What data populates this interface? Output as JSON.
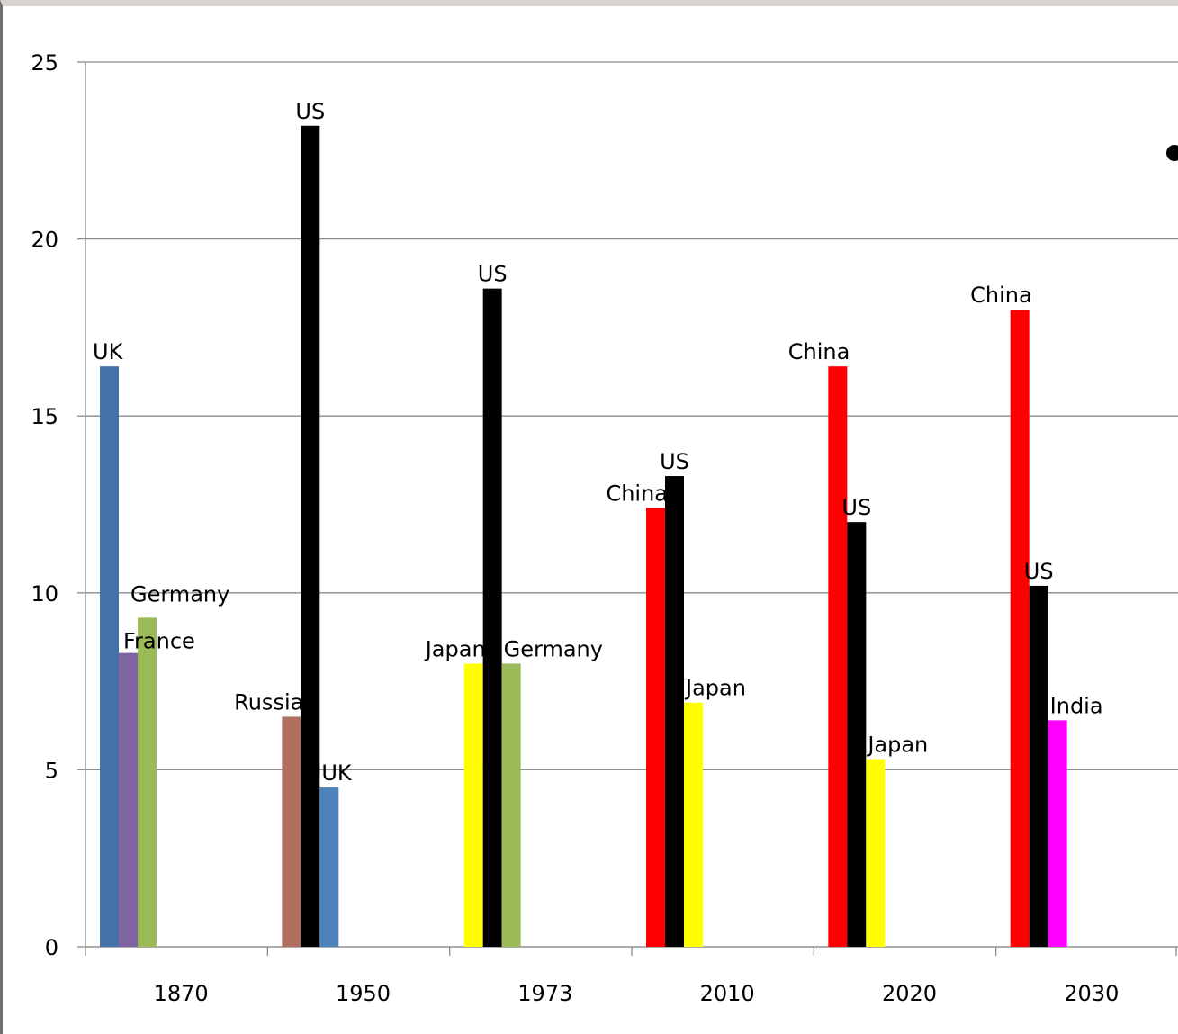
{
  "chart_data": {
    "type": "bar",
    "title": "",
    "xlabel": "",
    "ylabel": "",
    "ylim": [
      0,
      25
    ],
    "yticks": [
      0,
      5,
      10,
      15,
      20,
      25
    ],
    "grid": true,
    "categories": [
      {
        "label": "1870",
        "bars": [
          {
            "name": "UK",
            "value": 16.4,
            "color": "#4472a8"
          },
          {
            "name": "France",
            "value": 8.3,
            "color": "#8064a2"
          },
          {
            "name": "Germany",
            "value": 9.3,
            "color": "#9bbb59"
          }
        ]
      },
      {
        "label": "1950",
        "bars": [
          {
            "name": "Russia",
            "value": 6.5,
            "color": "#b07060"
          },
          {
            "name": "US",
            "value": 23.2,
            "color": "#000000"
          },
          {
            "name": "UK",
            "value": 4.5,
            "color": "#4f81bd"
          }
        ]
      },
      {
        "label": "1973",
        "bars": [
          {
            "name": "Japan",
            "value": 8.0,
            "color": "#ffff00"
          },
          {
            "name": "US",
            "value": 18.6,
            "color": "#000000"
          },
          {
            "name": "Germany",
            "value": 8.0,
            "color": "#9bbb59"
          }
        ]
      },
      {
        "label": "2010",
        "bars": [
          {
            "name": "China",
            "value": 12.4,
            "color": "#ff0000"
          },
          {
            "name": "US",
            "value": 13.3,
            "color": "#000000"
          },
          {
            "name": "Japan",
            "value": 6.9,
            "color": "#ffff00"
          }
        ]
      },
      {
        "label": "2020",
        "bars": [
          {
            "name": "China",
            "value": 16.4,
            "color": "#ff0000"
          },
          {
            "name": "US",
            "value": 12.0,
            "color": "#000000"
          },
          {
            "name": "Japan",
            "value": 5.3,
            "color": "#ffff00"
          }
        ]
      },
      {
        "label": "2030",
        "bars": [
          {
            "name": "China",
            "value": 18.0,
            "color": "#ff0000"
          },
          {
            "name": "US",
            "value": 10.2,
            "color": "#000000"
          },
          {
            "name": "India",
            "value": 6.4,
            "color": "#ff00ff"
          }
        ]
      }
    ]
  }
}
